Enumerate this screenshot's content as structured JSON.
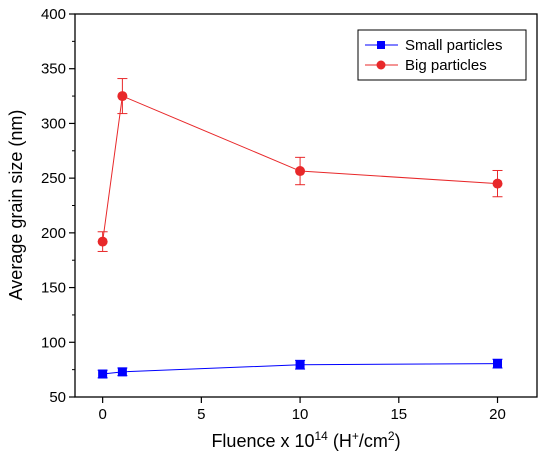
{
  "chart_data": {
    "type": "line",
    "xlabel": "Fluence x 10",
    "xlabel_sup": "14",
    "xlabel_unit_open": " (H",
    "xlabel_unit_sup1": "+",
    "xlabel_unit_mid": "/cm",
    "xlabel_unit_sup2": "2",
    "xlabel_unit_close": ")",
    "ylabel": "Average grain size (nm)",
    "xlim": [
      -1.4,
      22
    ],
    "ylim": [
      50,
      400
    ],
    "x_ticks": [
      0,
      5,
      10,
      15,
      20
    ],
    "y_ticks": [
      50,
      100,
      150,
      200,
      250,
      300,
      350,
      400
    ],
    "legend_position": "top-right",
    "series": [
      {
        "name": "Small particles",
        "color": "#0000ff",
        "marker": "square",
        "x": [
          0,
          1,
          10,
          20
        ],
        "y": [
          71,
          73,
          79.5,
          80.5
        ],
        "error": [
          3.5,
          3.5,
          4,
          4
        ]
      },
      {
        "name": "Big particles",
        "color": "#e8282a",
        "marker": "circle",
        "x": [
          0,
          1,
          10,
          20
        ],
        "y": [
          192,
          325,
          256.5,
          245
        ],
        "error": [
          9,
          16,
          12.5,
          12
        ]
      }
    ]
  }
}
